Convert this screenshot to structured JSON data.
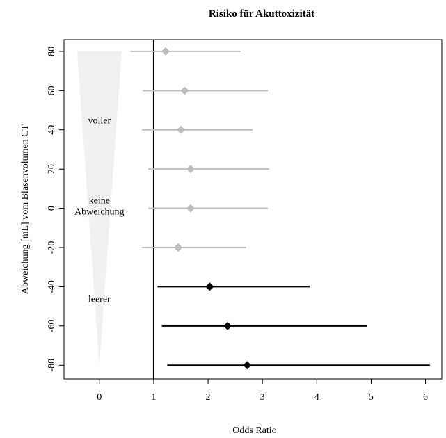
{
  "chart_data": {
    "type": "forest",
    "title": "Risiko für Akuttoxizität",
    "xlabel": "Odds Ratio",
    "ylabel": "Abweichung [mL] vom Blasenvolumen CT",
    "xlim": [
      -0.65,
      6.3
    ],
    "ylim": [
      -87,
      86
    ],
    "xticks": [
      0,
      1,
      2,
      3,
      4,
      5,
      6
    ],
    "yticks": [
      80,
      60,
      40,
      20,
      0,
      -20,
      -40,
      -60,
      -80
    ],
    "reference_line_x": 1,
    "colors": {
      "significant": "#000000",
      "not_significant": "#bdbdbd",
      "wedge": "#f0f0f0"
    },
    "points": [
      {
        "y": 80,
        "or": 1.22,
        "lo": 0.57,
        "hi": 2.6,
        "significant": false
      },
      {
        "y": 60,
        "or": 1.57,
        "lo": 0.8,
        "hi": 3.1,
        "significant": false
      },
      {
        "y": 40,
        "or": 1.5,
        "lo": 0.78,
        "hi": 2.82,
        "significant": false
      },
      {
        "y": 20,
        "or": 1.68,
        "lo": 0.9,
        "hi": 3.12,
        "significant": false
      },
      {
        "y": 0,
        "or": 1.68,
        "lo": 0.9,
        "hi": 3.1,
        "significant": false
      },
      {
        "y": -20,
        "or": 1.45,
        "lo": 0.78,
        "hi": 2.7,
        "significant": false
      },
      {
        "y": -40,
        "or": 2.03,
        "lo": 1.07,
        "hi": 3.87,
        "significant": true
      },
      {
        "y": -60,
        "or": 2.36,
        "lo": 1.15,
        "hi": 4.93,
        "significant": true
      },
      {
        "y": -80,
        "or": 2.72,
        "lo": 1.25,
        "hi": 6.08,
        "significant": true
      }
    ],
    "annotations": [
      {
        "lines": [
          "voller"
        ],
        "x": 0,
        "y": 45
      },
      {
        "lines": [
          "keine",
          "Abweichung"
        ],
        "x": 0,
        "y": 1.5
      },
      {
        "lines": [
          "leerer"
        ],
        "x": 0,
        "y": -46
      }
    ]
  }
}
